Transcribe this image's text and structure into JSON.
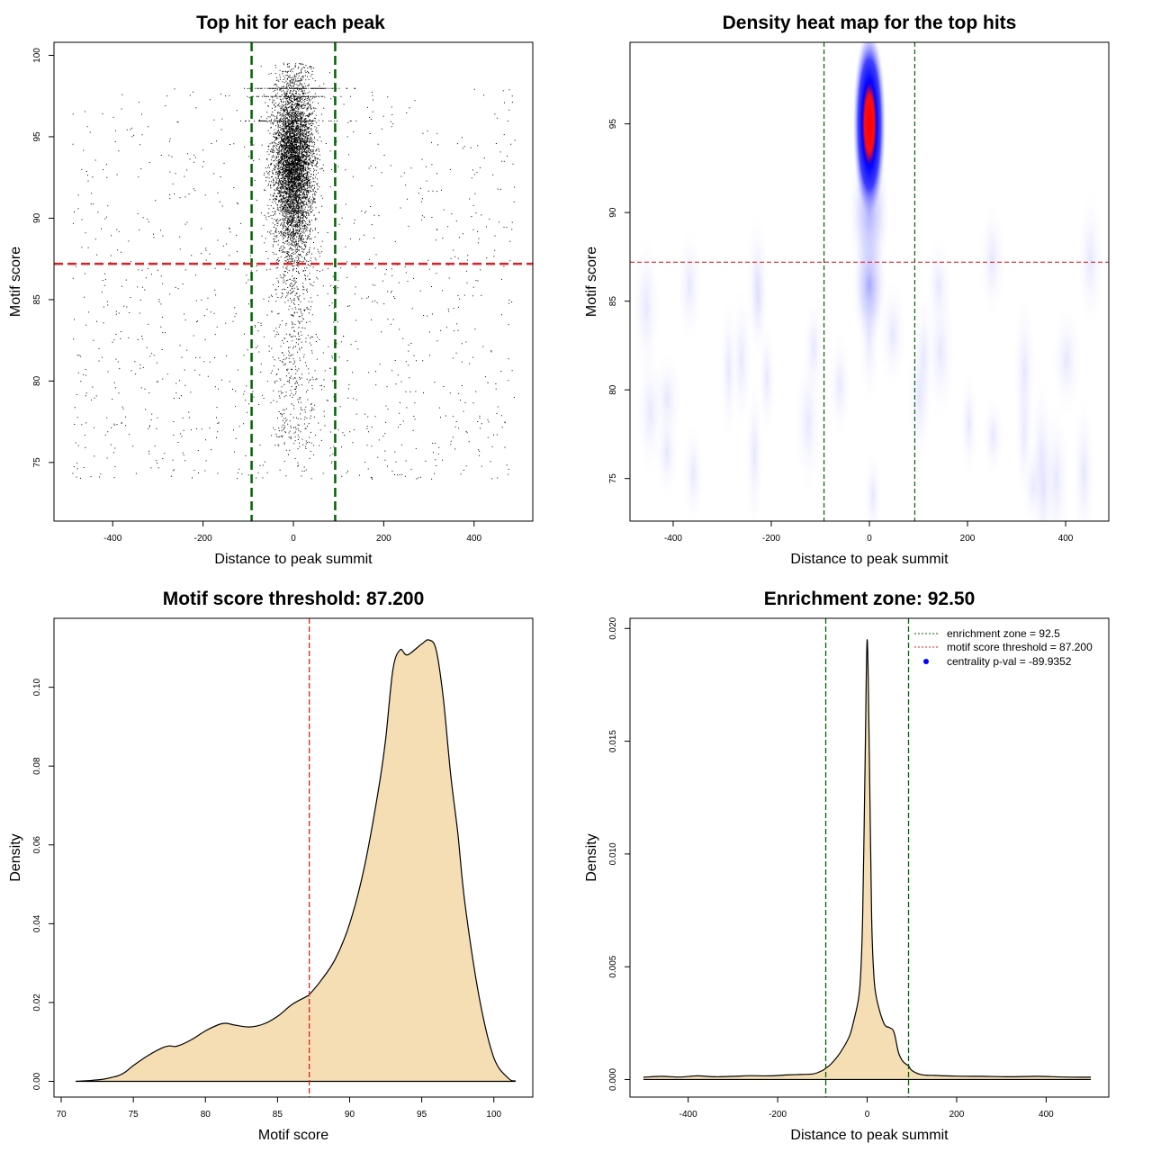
{
  "colors": {
    "green_line": "#006400",
    "red_line": "#E02020",
    "density_fill": "#F5DEB3",
    "heat_low": "#FFFFFF",
    "heat_mid": "#0000FF",
    "heat_high": "#FF0000",
    "legend_point": "#0000FF"
  },
  "chart_data": [
    {
      "type": "scatter",
      "title": "Top hit for each peak",
      "xlabel": "Distance to peak summit",
      "ylabel": "Motif score",
      "xlim": [
        -530,
        530
      ],
      "ylim": [
        71.4,
        100.8
      ],
      "xticks": [
        -400,
        -200,
        0,
        200,
        400
      ],
      "xtick_labels": [
        "-400",
        "-200",
        "0",
        "200",
        "400"
      ],
      "yticks": [
        75,
        80,
        85,
        90,
        95,
        100
      ],
      "ytick_labels": [
        "75",
        "80",
        "85",
        "90",
        "95",
        "100"
      ],
      "vlines": [
        -92.5,
        92.5
      ],
      "hline": 87.2,
      "description_of_points": "dense column of hits centred near 0 (sd about 25) with scores 85-100, plus scattered background hits across -490..490 with scores 73-99"
    },
    {
      "type": "heatmap",
      "title": "Density heat map for the top hits",
      "xlabel": "Distance to peak summit",
      "ylabel": "Motif score",
      "xlim": [
        -488,
        488
      ],
      "ylim": [
        72.6,
        99.6
      ],
      "xticks": [
        -400,
        -200,
        0,
        200,
        400
      ],
      "xtick_labels": [
        "-400",
        "-200",
        "0",
        "200",
        "400"
      ],
      "yticks": [
        75,
        80,
        85,
        90,
        95
      ],
      "ytick_labels": [
        "75",
        "80",
        "85",
        "90",
        "95"
      ],
      "vlines": [
        -92.5,
        92.5
      ],
      "hline": 87.2,
      "hotspot": {
        "x": 0,
        "y": 95,
        "peak_label": "highest density (red) near distance 0, score 95"
      }
    },
    {
      "type": "area",
      "title": "Motif score threshold: 87.200",
      "xlabel": "Motif score",
      "ylabel": "Density",
      "xlim": [
        69.5,
        102.7
      ],
      "ylim": [
        -0.004,
        0.1175
      ],
      "xticks": [
        70,
        75,
        80,
        85,
        90,
        95,
        100
      ],
      "xtick_labels": [
        "70",
        "75",
        "80",
        "85",
        "90",
        "95",
        "100"
      ],
      "yticks": [
        0,
        0.02,
        0.04,
        0.06,
        0.08,
        0.1
      ],
      "ytick_labels": [
        "0.00",
        "0.02",
        "0.04",
        "0.06",
        "0.08",
        "0.10"
      ],
      "vline": 87.2,
      "x": [
        71,
        72,
        73,
        74,
        74.5,
        75,
        76,
        77,
        77.5,
        78,
        79,
        80,
        81,
        81.5,
        82,
        83,
        84,
        85,
        86,
        87,
        87.2,
        88,
        89,
        90,
        91,
        92,
        92.5,
        93,
        93.5,
        94,
        95,
        95.5,
        96,
        96.5,
        97,
        97.5,
        98,
        99,
        100,
        101,
        101.5
      ],
      "y": [
        0.0,
        0.0002,
        0.0006,
        0.0015,
        0.0025,
        0.004,
        0.0065,
        0.0085,
        0.009,
        0.0089,
        0.0105,
        0.0128,
        0.0145,
        0.0147,
        0.0143,
        0.0138,
        0.0145,
        0.0165,
        0.0195,
        0.0215,
        0.022,
        0.0255,
        0.031,
        0.04,
        0.054,
        0.074,
        0.087,
        0.1045,
        0.1095,
        0.1082,
        0.111,
        0.112,
        0.1095,
        0.097,
        0.078,
        0.063,
        0.045,
        0.021,
        0.006,
        0.0008,
        0.0001
      ]
    },
    {
      "type": "area",
      "title": "Enrichment zone: 92.50",
      "xlabel": "Distance to peak summit",
      "ylabel": "Density",
      "xlim": [
        -530,
        540
      ],
      "ylim": [
        -0.00078,
        0.02045
      ],
      "xticks": [
        -400,
        -200,
        0,
        200,
        400
      ],
      "xtick_labels": [
        "-400",
        "-200",
        "0",
        "200",
        "400"
      ],
      "yticks": [
        0,
        0.005,
        0.01,
        0.015,
        0.02
      ],
      "ytick_labels": [
        "0.000",
        "0.005",
        "0.010",
        "0.015",
        "0.020"
      ],
      "vlines": [
        -92.5,
        92.5
      ],
      "x": [
        -500,
        -460,
        -420,
        -380,
        -340,
        -300,
        -260,
        -220,
        -180,
        -150,
        -120,
        -100,
        -92.5,
        -80,
        -60,
        -40,
        -30,
        -20,
        -15,
        -10,
        -5,
        0,
        5,
        10,
        15,
        20,
        30,
        40,
        50,
        60,
        70,
        80,
        92.5,
        100,
        120,
        150,
        200,
        260,
        320,
        380,
        440,
        500
      ],
      "y": [
        0.0001,
        0.00014,
        0.00011,
        0.00016,
        0.00012,
        0.00014,
        0.00017,
        0.00016,
        0.0002,
        0.00022,
        0.00025,
        0.0004,
        0.0005,
        0.0007,
        0.0012,
        0.0019,
        0.0026,
        0.0035,
        0.0045,
        0.0072,
        0.0135,
        0.0195,
        0.0142,
        0.0072,
        0.0046,
        0.0037,
        0.0029,
        0.0024,
        0.0023,
        0.0021,
        0.0012,
        0.0008,
        0.0006,
        0.0004,
        0.00022,
        0.00018,
        0.00015,
        0.00014,
        0.00012,
        0.00014,
        0.00011,
        0.0001
      ],
      "legend": [
        {
          "label": "enrichment zone = 92.5",
          "style": "dotted-green"
        },
        {
          "label": "motif score threshold = 87.200",
          "style": "dotted-red"
        },
        {
          "label": "centrality p-val = -89.9352",
          "style": "blue-point"
        }
      ]
    }
  ]
}
